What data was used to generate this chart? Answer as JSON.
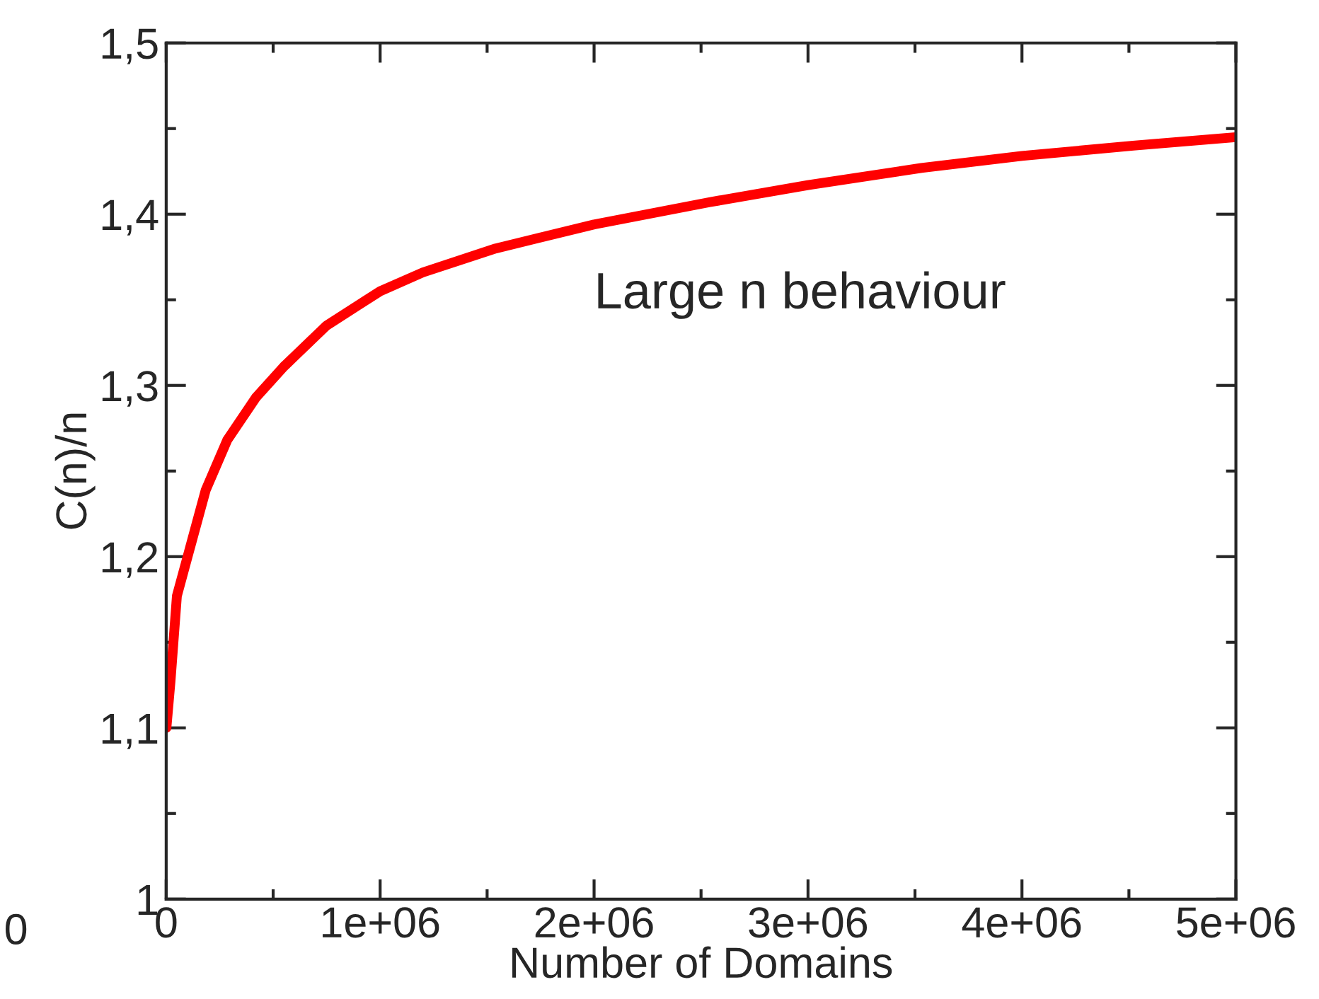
{
  "chart_data": {
    "type": "line",
    "xlabel": "Number of Domains",
    "ylabel": "C(n)/n",
    "annotations": [
      "Large n behaviour",
      "0"
    ],
    "x": [
      1000,
      20000,
      50000,
      100000,
      185000,
      285000,
      420000,
      550000,
      750000,
      1000000,
      1200000,
      1540000,
      2000000,
      2540000,
      3000000,
      3530000,
      4000000,
      4520000,
      5000000
    ],
    "series": [
      {
        "color": "#ff0000",
        "values": [
          1.1,
          1.127,
          1.177,
          1.2,
          1.239,
          1.268,
          1.293,
          1.311,
          1.335,
          1.355,
          1.366,
          1.38,
          1.394,
          1.407,
          1.417,
          1.427,
          1.434,
          1.44,
          1.445
        ]
      }
    ],
    "xlim": [
      0,
      5000000
    ],
    "ylim": [
      1.0,
      1.5
    ],
    "xticks": [
      0,
      {
        "value": 1000000,
        "label": "1e+06"
      },
      {
        "value": 2000000,
        "label": "2e+06"
      },
      {
        "value": 3000000,
        "label": "3e+06"
      },
      {
        "value": 4000000,
        "label": "4e+06"
      },
      {
        "value": 5000000,
        "label": "5e+06"
      }
    ],
    "yticks": [
      1,
      {
        "value": 1.1,
        "label": "1,1"
      },
      {
        "value": 1.2,
        "label": "1,2"
      },
      {
        "value": 1.3,
        "label": "1,3"
      },
      {
        "value": 1.4,
        "label": "1,4"
      },
      {
        "value": 1.5,
        "label": "1,5"
      }
    ],
    "grid": false,
    "marker": "none",
    "line_style": "solid"
  }
}
